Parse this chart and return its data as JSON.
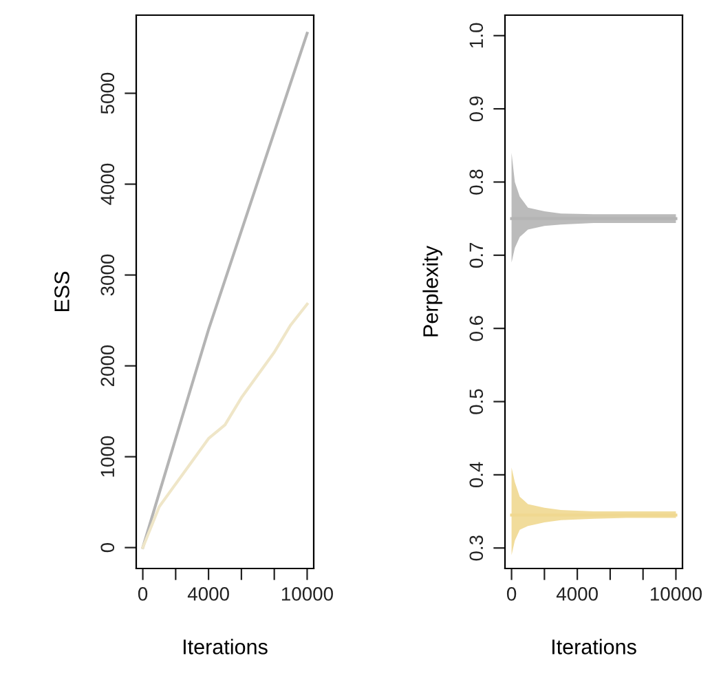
{
  "chart_data": [
    {
      "type": "line",
      "xlabel": "Iterations",
      "ylabel": "ESS",
      "xlim": [
        -400,
        10400
      ],
      "ylim": [
        -230,
        5860
      ],
      "xticks": [
        0,
        {
          "value": 2000,
          "label": null
        },
        4000,
        {
          "value": 6000,
          "label": null
        },
        {
          "value": 8000,
          "label": null
        },
        10000
      ],
      "yticks": [
        0,
        1000,
        2000,
        3000,
        4000,
        5000
      ],
      "grid": false,
      "legend": false,
      "series": [
        {
          "color": "#b4b4b4",
          "x": [
            0,
            1000,
            4000,
            10000
          ],
          "values": [
            0,
            600,
            2400,
            5660
          ]
        },
        {
          "color": "#efe6c8",
          "x": [
            0,
            1000,
            2000,
            3000,
            4000,
            5000,
            6000,
            7000,
            8000,
            9000,
            10000
          ],
          "values": [
            0,
            450,
            700,
            950,
            1200,
            1350,
            1650,
            1900,
            2150,
            2450,
            2680
          ]
        }
      ]
    },
    {
      "type": "line",
      "xlabel": "Iterations",
      "ylabel": "Perplexity",
      "xlim": [
        -400,
        10400
      ],
      "ylim": [
        0.272,
        1.028
      ],
      "xticks": [
        0,
        {
          "value": 2000,
          "label": null
        },
        4000,
        {
          "value": 6000,
          "label": null
        },
        {
          "value": 8000,
          "label": null
        },
        10000
      ],
      "yticks": [
        0.3,
        0.4,
        0.5,
        0.6,
        0.7,
        0.8,
        0.9,
        {
          "value": 1.0,
          "label": "1.0"
        }
      ],
      "grid": false,
      "legend": false,
      "series": [
        {
          "color": "#b4b4b4",
          "x": [
            0,
            200,
            500,
            1000,
            2000,
            3000,
            5000,
            7000,
            10000
          ],
          "values": [
            0.75,
            0.75,
            0.75,
            0.75,
            0.75,
            0.75,
            0.75,
            0.75,
            0.75
          ],
          "lower": [
            0.69,
            0.71,
            0.725,
            0.735,
            0.74,
            0.742,
            0.744,
            0.744,
            0.744
          ],
          "upper": [
            0.84,
            0.8,
            0.78,
            0.765,
            0.76,
            0.757,
            0.756,
            0.756,
            0.756
          ]
        },
        {
          "color": "#f0d890",
          "x": [
            0,
            200,
            500,
            1000,
            2000,
            3000,
            5000,
            7000,
            10000
          ],
          "values": [
            0.345,
            0.345,
            0.345,
            0.345,
            0.345,
            0.345,
            0.345,
            0.345,
            0.345
          ],
          "lower": [
            0.29,
            0.31,
            0.325,
            0.33,
            0.335,
            0.338,
            0.34,
            0.341,
            0.341
          ],
          "upper": [
            0.41,
            0.39,
            0.37,
            0.36,
            0.355,
            0.352,
            0.35,
            0.35,
            0.35
          ]
        }
      ]
    }
  ]
}
